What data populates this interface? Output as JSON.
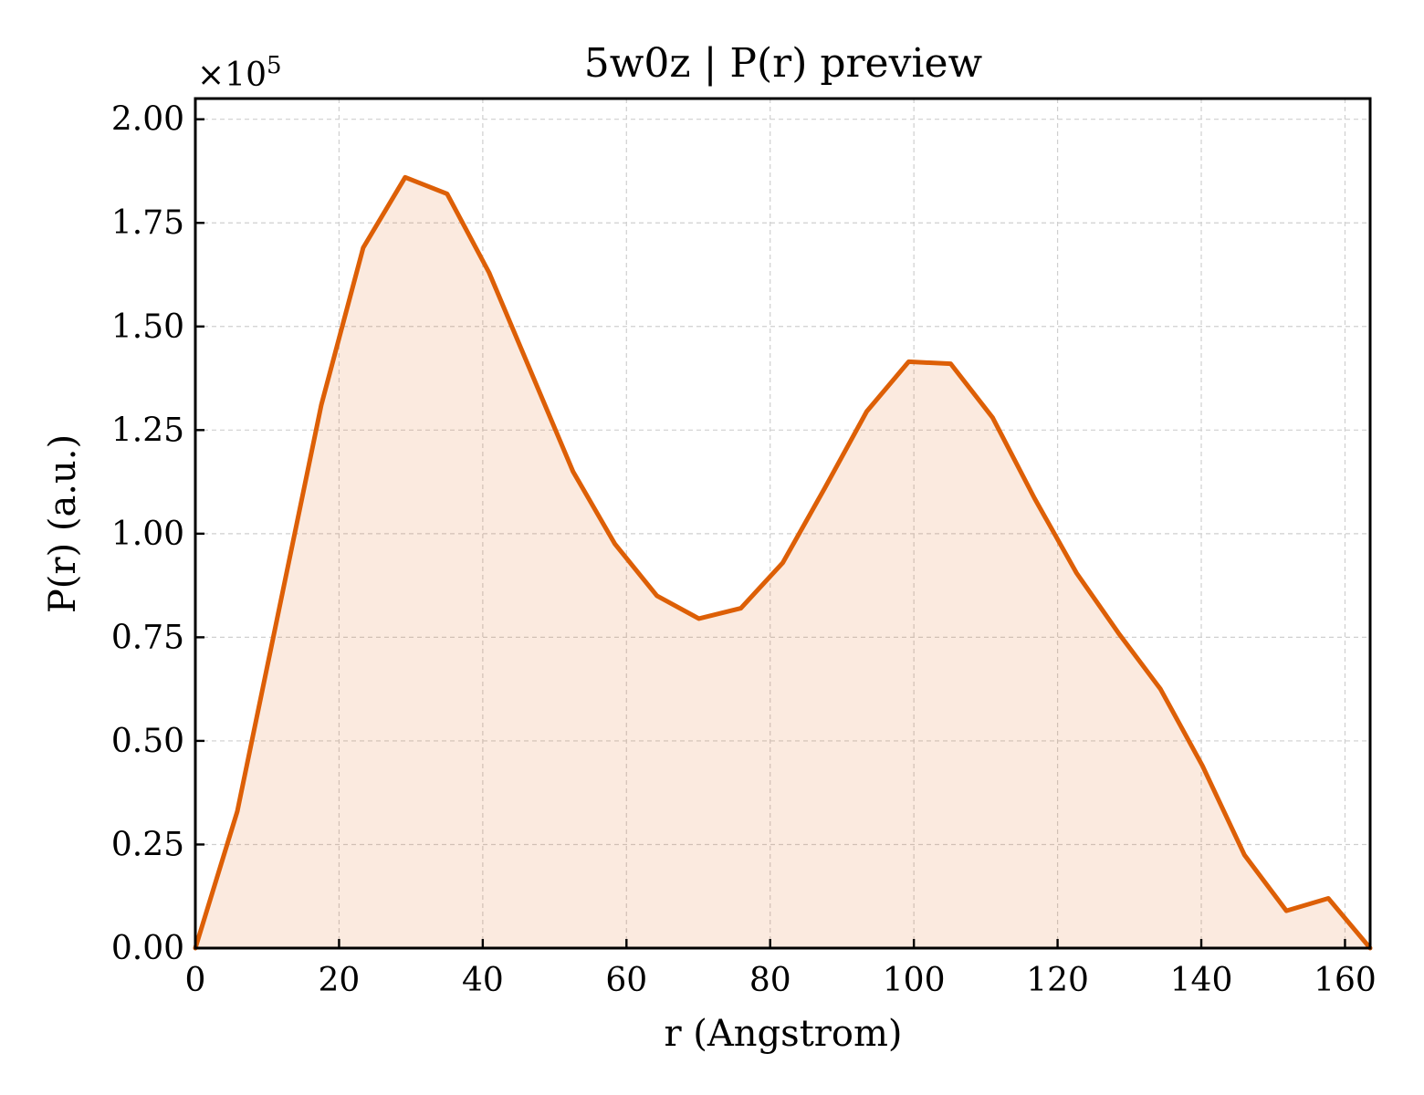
{
  "chart_data": {
    "type": "area",
    "title": "5w0z | P(r) preview",
    "xlabel": "r (Angstrom)",
    "ylabel": "P(r) (a.u.)",
    "y_multiplier": "×10",
    "y_multiplier_exp": "5",
    "xlim": [
      0,
      163.5
    ],
    "ylim": [
      0,
      2.05
    ],
    "xticks": [
      0,
      20,
      40,
      60,
      80,
      100,
      120,
      140,
      160
    ],
    "xtick_labels": [
      "0",
      "20",
      "40",
      "60",
      "80",
      "100",
      "120",
      "140",
      "160"
    ],
    "yticks": [
      0,
      0.25,
      0.5,
      0.75,
      1.0,
      1.25,
      1.5,
      1.75,
      2.0
    ],
    "ytick_labels": [
      "0.00",
      "0.25",
      "0.50",
      "0.75",
      "1.00",
      "1.25",
      "1.50",
      "1.75",
      "2.00"
    ],
    "grid": true,
    "series": [
      {
        "color": "#dd5f06",
        "fill_color": "#dd5f06",
        "x": [
          0,
          5.84,
          11.68,
          17.52,
          23.36,
          29.2,
          35.04,
          40.88,
          46.72,
          52.56,
          58.4,
          64.24,
          70.08,
          75.92,
          81.76,
          87.6,
          93.44,
          99.28,
          105.12,
          110.96,
          116.8,
          122.64,
          128.48,
          134.32,
          140.16,
          146.0,
          151.84,
          157.68,
          163.5
        ],
        "y": [
          0.0,
          0.33,
          0.82,
          1.31,
          1.69,
          1.86,
          1.82,
          1.63,
          1.39,
          1.15,
          0.975,
          0.85,
          0.795,
          0.82,
          0.93,
          1.11,
          1.295,
          1.415,
          1.41,
          1.28,
          1.085,
          0.905,
          0.76,
          0.625,
          0.44,
          0.225,
          0.09,
          0.12,
          0.0
        ]
      }
    ]
  }
}
